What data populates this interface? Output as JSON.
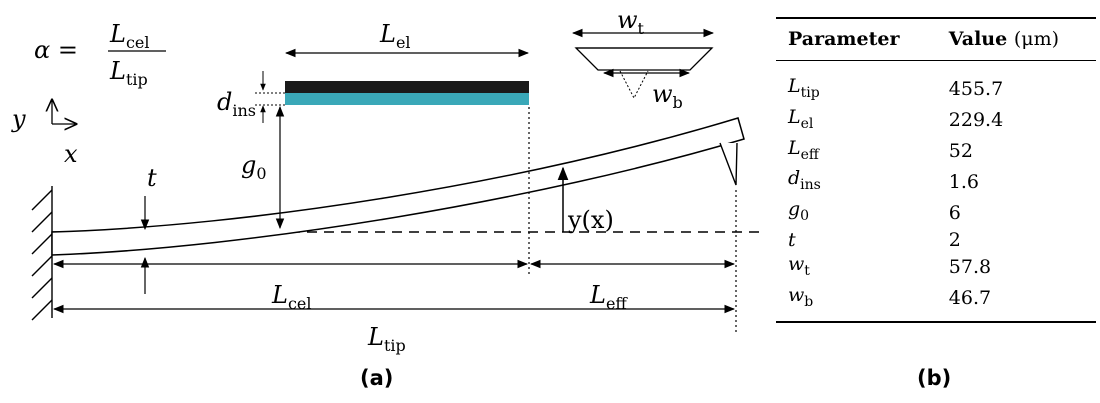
{
  "diagram": {
    "alpha_lhs": "α =",
    "alpha_num": {
      "base": "L",
      "sub": "cel"
    },
    "alpha_den": {
      "base": "L",
      "sub": "tip"
    },
    "axis_y": "y",
    "axis_x": "x",
    "label_t": "t",
    "label_g0": {
      "base": "g",
      "sub": "0"
    },
    "label_dins": {
      "base": "d",
      "sub": "ins"
    },
    "label_Lel": {
      "base": "L",
      "sub": "el"
    },
    "label_wt": {
      "base": "w",
      "sub": "t"
    },
    "label_wb": {
      "base": "w",
      "sub": "b"
    },
    "label_yx": "y(x)",
    "label_Lcel": {
      "base": "L",
      "sub": "cel"
    },
    "label_Leff": {
      "base": "L",
      "sub": "eff"
    },
    "label_Ltip": {
      "base": "L",
      "sub": "tip"
    },
    "colors": {
      "electrode_top": "#1a1a1a",
      "electrode_bottom": "#3aa8b8",
      "line": "#000000"
    }
  },
  "table": {
    "header_param": "Parameter",
    "header_value": "Value",
    "header_unit": "(μm)",
    "rows": [
      {
        "base": "L",
        "sub": "tip",
        "value": "455.7"
      },
      {
        "base": "L",
        "sub": "el",
        "value": "229.4"
      },
      {
        "base": "L",
        "sub": "eff",
        "value": "52"
      },
      {
        "base": "d",
        "sub": "ins",
        "value": "1.6"
      },
      {
        "base": "g",
        "sub": "0",
        "value": "6"
      },
      {
        "base": "t",
        "sub": "",
        "value": "2"
      },
      {
        "base": "w",
        "sub": "t",
        "value": "57.8"
      },
      {
        "base": "w",
        "sub": "b",
        "value": "46.7"
      }
    ]
  },
  "captions": {
    "a": "(a)",
    "b": "(b)"
  }
}
